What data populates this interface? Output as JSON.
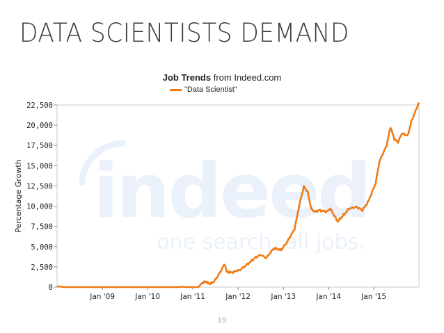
{
  "slide": {
    "title": "DATA SCIENTISTS DEMAND",
    "page_number": "19"
  },
  "watermark": {
    "brand": "indeed",
    "tagline": "one search. all jobs."
  },
  "colors": {
    "series": "#f07a14",
    "axis": "#888888",
    "grid": "#e8e8e8",
    "watermark": "#eaf1fa"
  },
  "chart_data": {
    "type": "line",
    "title_bold": "Job Trends",
    "title_rest": " from Indeed.com",
    "ylabel": "Percentage Growth",
    "xlabel": "",
    "xlim": [
      "2008-01-01",
      "2015-12-31"
    ],
    "ylim": [
      0,
      22500
    ],
    "yticks": [
      0,
      2500,
      5000,
      7500,
      10000,
      12500,
      15000,
      17500,
      20000,
      22500
    ],
    "ytick_labels": [
      "0",
      "2,500",
      "5,000",
      "7,500",
      "10,000",
      "12,500",
      "15,000",
      "17,500",
      "20,000",
      "22,500"
    ],
    "xticks": [
      "2009-01-01",
      "2010-01-01",
      "2011-01-01",
      "2012-01-01",
      "2013-01-01",
      "2014-01-01",
      "2015-01-01"
    ],
    "xtick_labels": [
      "Jan '09",
      "Jan '10",
      "Jan '11",
      "Jan '12",
      "Jan '13",
      "Jan '14",
      "Jan '15"
    ],
    "legend_position": "top-center",
    "grid": false,
    "series": [
      {
        "name": "\"Data Scientist\"",
        "points": [
          [
            "2008-01-01",
            100
          ],
          [
            "2008-03-01",
            0
          ],
          [
            "2009-06-01",
            0
          ],
          [
            "2010-06-01",
            0
          ],
          [
            "2010-09-01",
            0
          ],
          [
            "2010-10-15",
            50
          ],
          [
            "2010-11-15",
            0
          ],
          [
            "2011-02-15",
            0
          ],
          [
            "2011-03-15",
            500
          ],
          [
            "2011-04-15",
            700
          ],
          [
            "2011-05-15",
            400
          ],
          [
            "2011-06-15",
            600
          ],
          [
            "2011-07-15",
            1200
          ],
          [
            "2011-08-15",
            2000
          ],
          [
            "2011-09-15",
            2900
          ],
          [
            "2011-10-01",
            1900
          ],
          [
            "2011-11-15",
            1800
          ],
          [
            "2011-12-15",
            2000
          ],
          [
            "2012-01-15",
            2100
          ],
          [
            "2012-03-15",
            2800
          ],
          [
            "2012-05-15",
            3600
          ],
          [
            "2012-07-01",
            4000
          ],
          [
            "2012-08-15",
            3600
          ],
          [
            "2012-10-15",
            4800
          ],
          [
            "2012-12-15",
            4600
          ],
          [
            "2013-02-01",
            5600
          ],
          [
            "2013-04-01",
            7200
          ],
          [
            "2013-05-15",
            10500
          ],
          [
            "2013-06-15",
            12400
          ],
          [
            "2013-07-15",
            11800
          ],
          [
            "2013-08-15",
            9600
          ],
          [
            "2013-09-15",
            9300
          ],
          [
            "2013-10-15",
            9500
          ],
          [
            "2013-12-15",
            9300
          ],
          [
            "2014-01-15",
            9700
          ],
          [
            "2014-03-15",
            8100
          ],
          [
            "2014-05-01",
            8900
          ],
          [
            "2014-06-15",
            9700
          ],
          [
            "2014-08-15",
            9900
          ],
          [
            "2014-10-01",
            9500
          ],
          [
            "2014-11-15",
            10500
          ],
          [
            "2015-01-15",
            12800
          ],
          [
            "2015-02-15",
            15500
          ],
          [
            "2015-03-15",
            16500
          ],
          [
            "2015-04-15",
            17500
          ],
          [
            "2015-05-15",
            19800
          ],
          [
            "2015-06-15",
            18300
          ],
          [
            "2015-07-15",
            17900
          ],
          [
            "2015-08-15",
            19000
          ],
          [
            "2015-10-01",
            18700
          ],
          [
            "2015-11-01",
            20500
          ],
          [
            "2015-12-31",
            22800
          ]
        ]
      }
    ]
  }
}
